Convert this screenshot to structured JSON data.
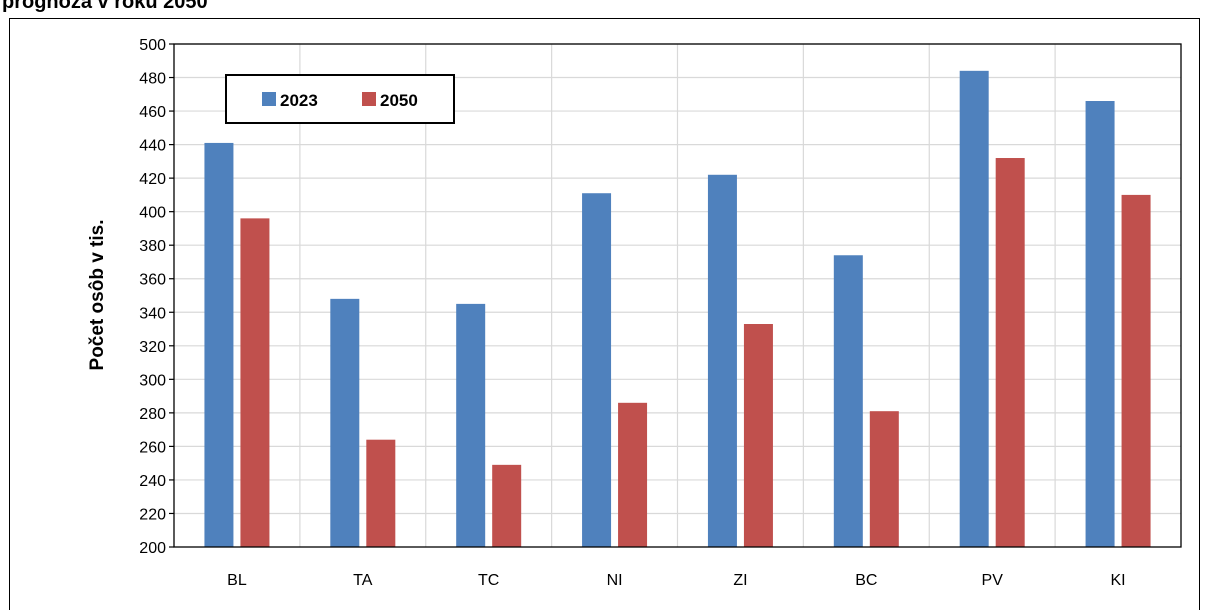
{
  "page": {
    "title": "prognóza v roku 2050"
  },
  "chart_data": {
    "type": "bar",
    "title": "",
    "xlabel": "",
    "ylabel": "Počet osôb v tis.",
    "ylim": [
      200,
      500
    ],
    "ytick_step": 20,
    "grid": true,
    "legend_position": "top-left",
    "categories": [
      "BL",
      "TA",
      "TC",
      "NI",
      "ZI",
      "BC",
      "PV",
      "KI"
    ],
    "series": [
      {
        "name": "2023",
        "color": "#4F81BD",
        "values": [
          441,
          348,
          345,
          411,
          422,
          374,
          484,
          466
        ]
      },
      {
        "name": "2050",
        "color": "#C0504D",
        "values": [
          396,
          264,
          249,
          286,
          333,
          281,
          432,
          410
        ]
      }
    ]
  }
}
